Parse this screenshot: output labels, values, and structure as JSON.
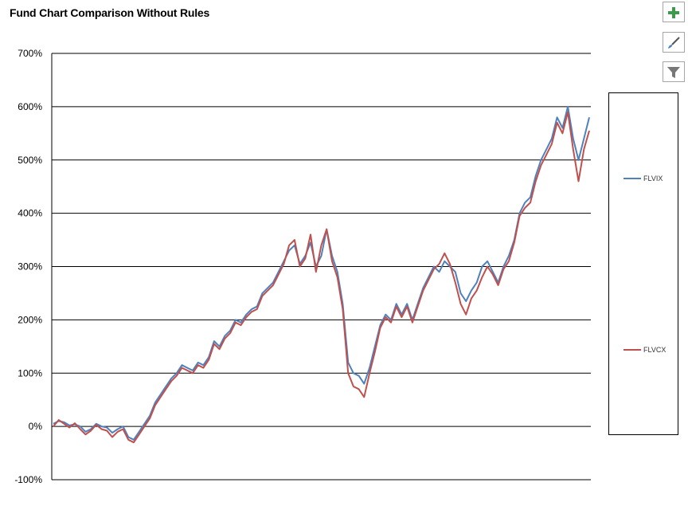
{
  "chart_data": {
    "type": "line",
    "title": "Fund Chart Comparison Without Rules",
    "xlabel": "",
    "ylabel": "",
    "ylim": [
      -100,
      700
    ],
    "y_ticks": [
      "-100%",
      "0%",
      "100%",
      "200%",
      "300%",
      "400%",
      "500%",
      "600%",
      "700%"
    ],
    "grid": "horizontal",
    "legend_position": "right",
    "x": [
      0,
      2,
      4,
      6,
      8,
      10,
      12,
      14,
      16,
      18,
      20,
      22,
      24,
      26,
      28,
      30,
      32,
      34,
      36,
      38,
      40,
      42,
      44,
      46,
      48,
      50,
      52,
      54,
      56,
      58,
      60,
      62,
      64,
      66,
      68,
      70,
      72,
      74,
      76,
      78,
      80,
      82,
      84,
      86,
      88,
      90,
      92,
      94,
      96,
      98,
      100,
      102,
      104,
      106,
      108,
      110,
      112,
      114,
      116,
      118,
      120,
      122,
      124,
      126,
      128,
      130,
      132,
      134,
      136,
      138,
      140,
      142,
      144,
      146,
      148,
      150,
      152,
      154,
      156,
      158,
      160,
      162,
      164,
      166,
      168,
      170,
      172,
      174,
      176,
      178,
      180,
      182,
      184,
      186,
      188,
      190,
      192,
      194,
      196,
      198,
      200
    ],
    "series": [
      {
        "name": "FLVIX",
        "color": "#4f81bd",
        "values": [
          5,
          10,
          8,
          2,
          4,
          0,
          -10,
          -5,
          5,
          0,
          -2,
          -12,
          -5,
          0,
          -20,
          -25,
          -10,
          5,
          20,
          45,
          60,
          75,
          90,
          100,
          115,
          110,
          105,
          120,
          115,
          130,
          160,
          150,
          170,
          180,
          200,
          195,
          210,
          220,
          225,
          250,
          260,
          270,
          290,
          310,
          330,
          340,
          305,
          320,
          345,
          300,
          320,
          370,
          320,
          290,
          230,
          120,
          100,
          95,
          80,
          110,
          150,
          190,
          210,
          200,
          230,
          210,
          230,
          200,
          230,
          260,
          280,
          300,
          290,
          310,
          300,
          290,
          250,
          235,
          255,
          270,
          300,
          310,
          290,
          270,
          300,
          320,
          350,
          400,
          420,
          430,
          470,
          500,
          520,
          540,
          580,
          560,
          600,
          540,
          500,
          540,
          580
        ]
      },
      {
        "name": "FLVCX",
        "color": "#c0504d",
        "values": [
          0,
          12,
          5,
          -2,
          6,
          -5,
          -15,
          -8,
          3,
          -5,
          -8,
          -20,
          -10,
          -5,
          -25,
          -30,
          -15,
          0,
          15,
          40,
          55,
          70,
          85,
          95,
          110,
          105,
          100,
          115,
          110,
          125,
          155,
          145,
          165,
          175,
          195,
          190,
          205,
          215,
          220,
          245,
          255,
          265,
          285,
          305,
          340,
          350,
          300,
          315,
          360,
          290,
          340,
          370,
          310,
          280,
          220,
          100,
          75,
          70,
          55,
          100,
          140,
          185,
          205,
          195,
          225,
          205,
          225,
          195,
          225,
          255,
          275,
          295,
          305,
          325,
          305,
          270,
          230,
          210,
          240,
          255,
          280,
          300,
          285,
          265,
          295,
          310,
          345,
          395,
          410,
          420,
          460,
          490,
          510,
          530,
          570,
          550,
          590,
          520,
          460,
          520,
          555
        ]
      }
    ]
  },
  "legend": {
    "items": [
      {
        "label": "FLVIX",
        "color": "#4f81bd"
      },
      {
        "label": "FLVCX",
        "color": "#c0504d"
      }
    ]
  },
  "toolbar": {
    "icons": [
      "plus-icon",
      "brush-icon",
      "filter-icon"
    ]
  }
}
